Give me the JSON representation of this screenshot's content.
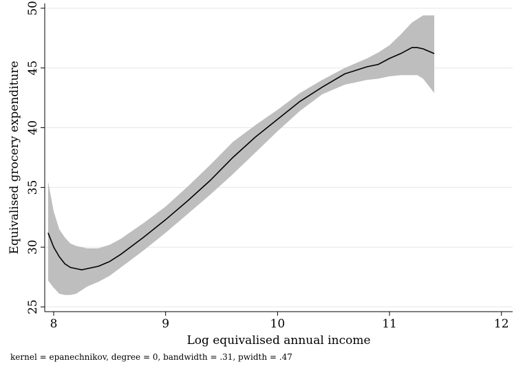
{
  "chart_data": {
    "type": "line",
    "title": "",
    "xlabel": "Log equivalised annual income",
    "ylabel": "Equivalised grocery expenditure",
    "note": "kernel = epanechnikov, degree = 0, bandwidth = .31, pwidth = .47",
    "xlim": [
      7.92,
      12.1
    ],
    "ylim": [
      24.6,
      50.4
    ],
    "xticks": [
      8,
      9,
      10,
      11,
      12
    ],
    "xtick_labels": [
      "8",
      "9",
      "10",
      "11",
      "12"
    ],
    "yticks": [
      25,
      30,
      35,
      40,
      45,
      50
    ],
    "ytick_labels": [
      "25",
      "30",
      "35",
      "40",
      "45",
      "50"
    ],
    "grid": "horizontal",
    "legend": "none",
    "colors": {
      "line": "#000000",
      "band": "#bebebe",
      "grid": "#e6e6e6"
    },
    "x": [
      7.95,
      8.0,
      8.05,
      8.1,
      8.15,
      8.2,
      8.25,
      8.3,
      8.4,
      8.5,
      8.6,
      8.8,
      9.0,
      9.2,
      9.4,
      9.6,
      9.8,
      10.0,
      10.2,
      10.4,
      10.6,
      10.8,
      10.9,
      11.0,
      11.1,
      11.2,
      11.25,
      11.3,
      11.4
    ],
    "fit": [
      31.2,
      30.0,
      29.2,
      28.6,
      28.3,
      28.2,
      28.1,
      28.2,
      28.4,
      28.8,
      29.4,
      30.8,
      32.3,
      33.9,
      35.6,
      37.5,
      39.2,
      40.7,
      42.2,
      43.4,
      44.5,
      45.1,
      45.3,
      45.8,
      46.2,
      46.7,
      46.7,
      46.6,
      46.2
    ],
    "upper": [
      35.5,
      33.0,
      31.5,
      30.8,
      30.3,
      30.1,
      30.0,
      29.9,
      29.9,
      30.2,
      30.7,
      32.0,
      33.4,
      35.1,
      36.9,
      38.8,
      40.2,
      41.5,
      42.9,
      44.0,
      45.0,
      45.8,
      46.3,
      46.9,
      47.8,
      48.8,
      49.1,
      49.4,
      49.4
    ],
    "lower": [
      27.2,
      26.6,
      26.1,
      26.0,
      26.0,
      26.1,
      26.4,
      26.7,
      27.1,
      27.6,
      28.3,
      29.7,
      31.2,
      32.8,
      34.4,
      36.1,
      37.9,
      39.7,
      41.4,
      42.8,
      43.6,
      44.0,
      44.1,
      44.3,
      44.4,
      44.4,
      44.4,
      44.1,
      42.9
    ]
  }
}
